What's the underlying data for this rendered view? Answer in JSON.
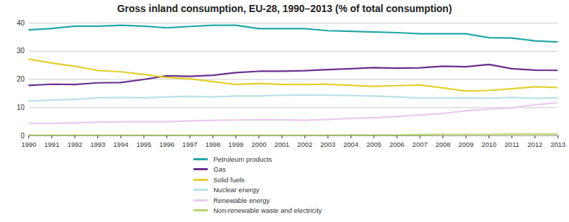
{
  "chart_data": {
    "type": "line",
    "title": "Gross inland consumption, EU-28, 1990–2013 (% of total consumption)",
    "x": [
      1990,
      1991,
      1992,
      1993,
      1994,
      1995,
      1996,
      1997,
      1998,
      1999,
      2000,
      2001,
      2002,
      2003,
      2004,
      2005,
      2006,
      2007,
      2008,
      2009,
      2010,
      2011,
      2012,
      2013
    ],
    "xlim": [
      1990,
      2013
    ],
    "xticks": [
      1990,
      1991,
      1992,
      1993,
      1994,
      1995,
      1996,
      1997,
      1998,
      1999,
      2000,
      2001,
      2002,
      2003,
      2004,
      2005,
      2006,
      2007,
      2008,
      2009,
      2010,
      2011,
      2012,
      2013
    ],
    "ylim": [
      0,
      40
    ],
    "yticks": [
      0,
      10,
      20,
      30,
      40
    ],
    "grid": true,
    "legend": "bottom",
    "series": [
      {
        "name": "Petroleum products",
        "color": "#23a6a8",
        "values": [
          37.6,
          38.1,
          38.9,
          38.9,
          39.2,
          38.9,
          38.3,
          38.8,
          39.2,
          39.2,
          38.0,
          38.0,
          38.0,
          37.3,
          37.1,
          36.8,
          36.6,
          36.2,
          36.2,
          36.2,
          34.8,
          34.7,
          33.7,
          33.3
        ]
      },
      {
        "name": "Gas",
        "color": "#6b2e8f",
        "values": [
          17.9,
          18.3,
          18.2,
          18.8,
          18.9,
          20.0,
          21.3,
          21.1,
          21.5,
          22.4,
          22.9,
          22.9,
          23.1,
          23.5,
          23.8,
          24.2,
          24.0,
          24.1,
          24.7,
          24.5,
          25.3,
          23.8,
          23.3,
          23.2
        ]
      },
      {
        "name": "Solid fuels",
        "color": "#e3cf2c",
        "values": [
          27.2,
          25.8,
          24.7,
          23.2,
          22.7,
          21.8,
          20.7,
          20.2,
          19.2,
          18.2,
          18.6,
          18.2,
          18.2,
          18.3,
          17.9,
          17.5,
          17.8,
          18.0,
          17.0,
          15.9,
          16.1,
          16.7,
          17.4,
          17.1
        ]
      },
      {
        "name": "Nuclear energy",
        "color": "#b9e0ea",
        "values": [
          12.3,
          12.7,
          12.9,
          13.5,
          13.6,
          13.5,
          13.8,
          14.0,
          13.8,
          14.1,
          14.1,
          14.4,
          14.5,
          14.4,
          14.3,
          14.1,
          13.8,
          13.4,
          13.4,
          13.5,
          13.3,
          13.6,
          13.3,
          13.5
        ]
      },
      {
        "name": "Renewable energy",
        "color": "#ebc8f0",
        "values": [
          4.4,
          4.4,
          4.6,
          4.8,
          5.0,
          5.0,
          5.0,
          5.3,
          5.5,
          5.6,
          5.7,
          5.7,
          5.5,
          5.8,
          6.2,
          6.4,
          6.9,
          7.4,
          7.9,
          8.9,
          9.5,
          9.9,
          11.0,
          11.8
        ]
      },
      {
        "name": "Non-renewable waste and electricity",
        "color": "#b5d56a",
        "values": [
          0.2,
          0.2,
          0.2,
          0.2,
          0.2,
          0.2,
          0.2,
          0.2,
          0.2,
          0.2,
          0.2,
          0.2,
          0.2,
          0.2,
          0.3,
          0.3,
          0.3,
          0.4,
          0.5,
          0.5,
          0.5,
          0.6,
          0.6,
          0.6
        ]
      }
    ]
  }
}
